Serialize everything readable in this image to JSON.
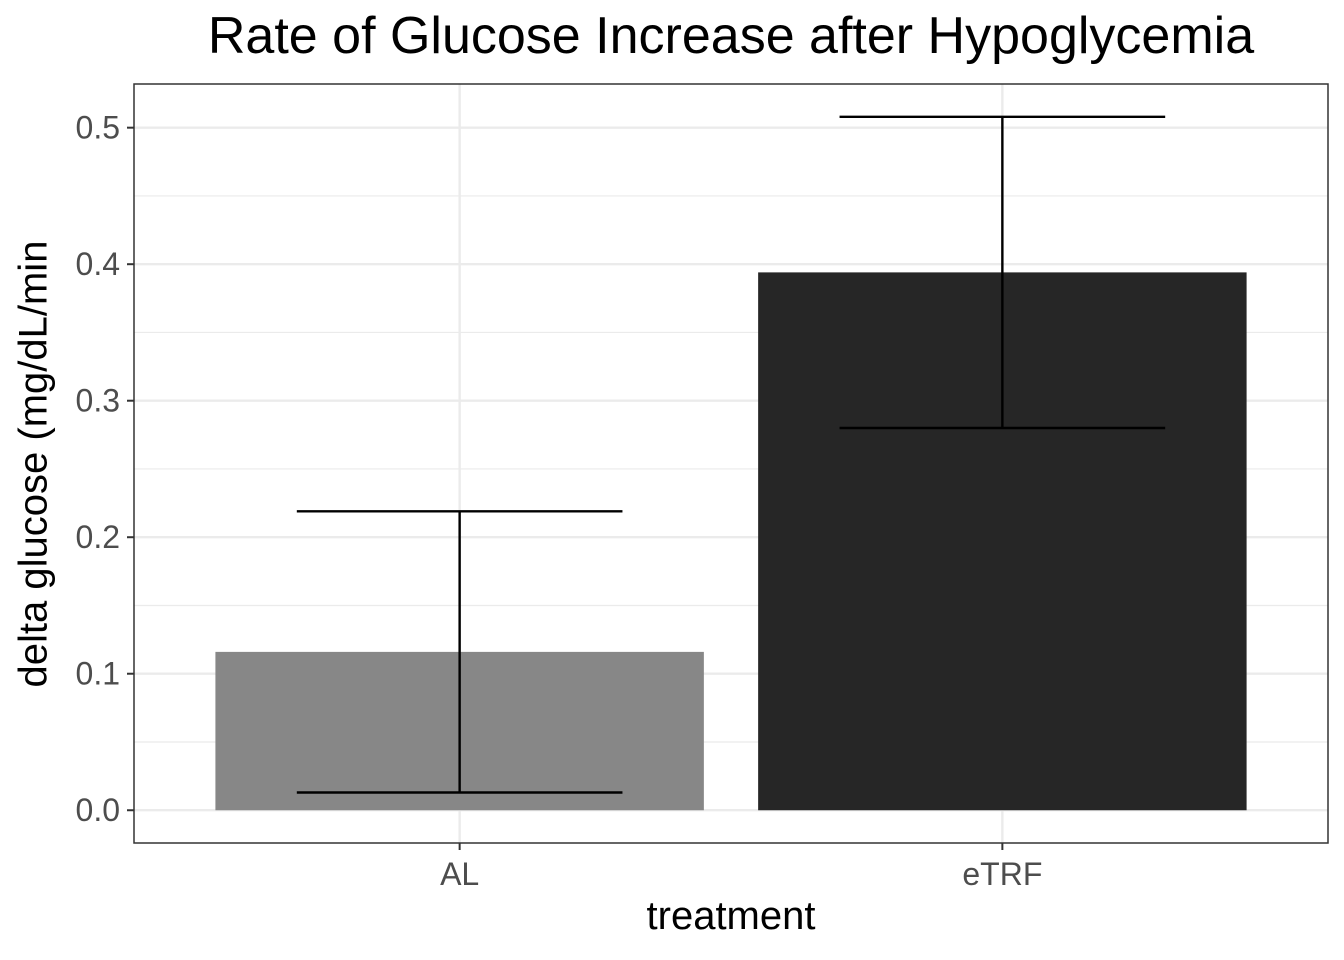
{
  "chart_data": {
    "type": "bar",
    "title": "Rate of Glucose Increase after Hypoglycemia",
    "xlabel": "treatment",
    "ylabel": "delta glucose (mg/dL/min",
    "categories": [
      "AL",
      "eTRF"
    ],
    "values": [
      0.116,
      0.394
    ],
    "error_lower": [
      0.013,
      0.28
    ],
    "error_upper": [
      0.219,
      0.508
    ],
    "bar_colors": [
      "#878787",
      "#262626"
    ],
    "ylim": [
      -0.024,
      0.532
    ],
    "yticks": [
      0.0,
      0.1,
      0.2,
      0.3,
      0.4,
      0.5
    ],
    "ytick_labels": [
      "0.0",
      "0.1",
      "0.2",
      "0.3",
      "0.4",
      "0.5"
    ],
    "grid": true,
    "legend": "none"
  }
}
